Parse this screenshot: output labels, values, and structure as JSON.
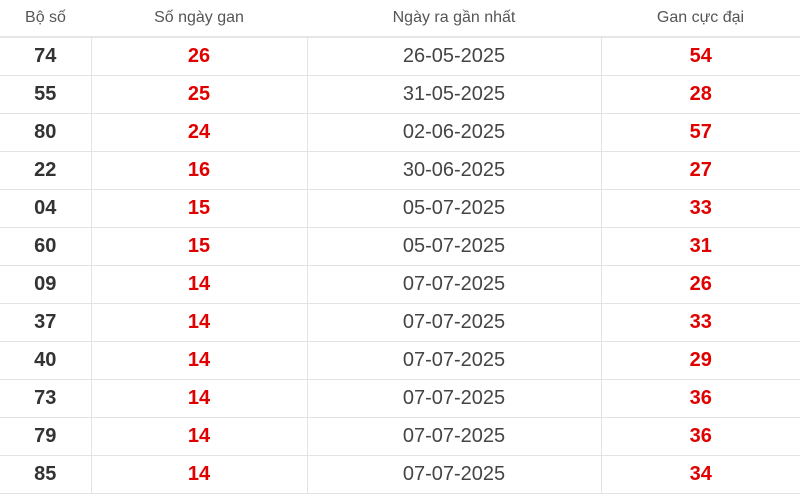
{
  "table": {
    "headers": [
      "Bộ số",
      "Số ngày gan",
      "Ngày ra gần nhất",
      "Gan cực đại"
    ],
    "rows": [
      {
        "bo_so": "74",
        "so_ngay_gan": "26",
        "ngay_ra": "26-05-2025",
        "gan_cuc_dai": "54"
      },
      {
        "bo_so": "55",
        "so_ngay_gan": "25",
        "ngay_ra": "31-05-2025",
        "gan_cuc_dai": "28"
      },
      {
        "bo_so": "80",
        "so_ngay_gan": "24",
        "ngay_ra": "02-06-2025",
        "gan_cuc_dai": "57"
      },
      {
        "bo_so": "22",
        "so_ngay_gan": "16",
        "ngay_ra": "30-06-2025",
        "gan_cuc_dai": "27"
      },
      {
        "bo_so": "04",
        "so_ngay_gan": "15",
        "ngay_ra": "05-07-2025",
        "gan_cuc_dai": "33"
      },
      {
        "bo_so": "60",
        "so_ngay_gan": "15",
        "ngay_ra": "05-07-2025",
        "gan_cuc_dai": "31"
      },
      {
        "bo_so": "09",
        "so_ngay_gan": "14",
        "ngay_ra": "07-07-2025",
        "gan_cuc_dai": "26"
      },
      {
        "bo_so": "37",
        "so_ngay_gan": "14",
        "ngay_ra": "07-07-2025",
        "gan_cuc_dai": "33"
      },
      {
        "bo_so": "40",
        "so_ngay_gan": "14",
        "ngay_ra": "07-07-2025",
        "gan_cuc_dai": "29"
      },
      {
        "bo_so": "73",
        "so_ngay_gan": "14",
        "ngay_ra": "07-07-2025",
        "gan_cuc_dai": "36"
      },
      {
        "bo_so": "79",
        "so_ngay_gan": "14",
        "ngay_ra": "07-07-2025",
        "gan_cuc_dai": "36"
      },
      {
        "bo_so": "85",
        "so_ngay_gan": "14",
        "ngay_ra": "07-07-2025",
        "gan_cuc_dai": "34"
      }
    ]
  },
  "colors": {
    "highlight": "#e10000",
    "text": "#333333",
    "header_text": "#555555"
  }
}
